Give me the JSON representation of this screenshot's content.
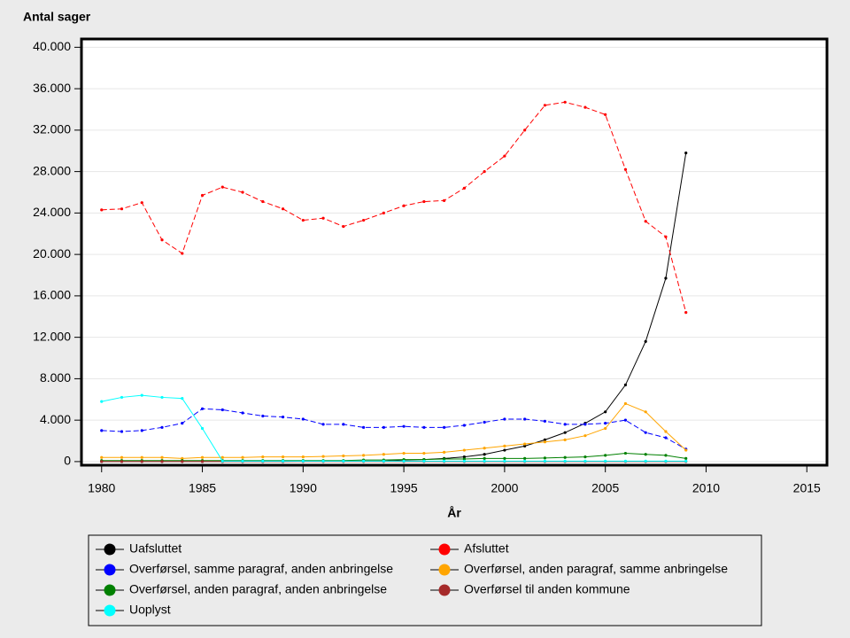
{
  "chart_data": {
    "type": "line",
    "ylabel": "Antal sager",
    "xlabel": "År",
    "x": [
      1980,
      1981,
      1982,
      1983,
      1984,
      1985,
      1986,
      1987,
      1988,
      1989,
      1990,
      1991,
      1992,
      1993,
      1994,
      1995,
      1996,
      1997,
      1998,
      1999,
      2000,
      2001,
      2002,
      2003,
      2004,
      2005,
      2006,
      2007,
      2008,
      2009
    ],
    "xlim": [
      1979,
      2016
    ],
    "xticks": [
      1980,
      1985,
      1990,
      1995,
      2000,
      2005,
      2010,
      2015
    ],
    "ylim": [
      -350,
      40800
    ],
    "yticks": [
      0,
      {
        "value": 4000,
        "label": "4.000"
      },
      {
        "value": 8000,
        "label": "8.000"
      },
      {
        "value": 12000,
        "label": "12.000"
      },
      {
        "value": 16000,
        "label": "16.000"
      },
      {
        "value": 20000,
        "label": "20.000"
      },
      {
        "value": 24000,
        "label": "24.000"
      },
      {
        "value": 28000,
        "label": "28.000"
      },
      {
        "value": 32000,
        "label": "32.000"
      },
      {
        "value": 36000,
        "label": "36.000"
      },
      {
        "value": 40000,
        "label": "40.000"
      }
    ],
    "grid": true,
    "series": [
      {
        "name": "Uafsluttet",
        "color": "#000000",
        "dashed": false,
        "values": [
          0,
          0,
          0,
          0,
          0,
          0,
          0,
          0,
          0,
          0,
          50,
          50,
          50,
          50,
          50,
          150,
          200,
          300,
          450,
          700,
          1100,
          1500,
          2100,
          2800,
          3700,
          4800,
          7400,
          11600,
          17700,
          29800
        ]
      },
      {
        "name": "Afsluttet",
        "color": "#ff0000",
        "dashed": true,
        "values": [
          24300,
          24400,
          25000,
          21400,
          20100,
          25700,
          26500,
          26000,
          25100,
          24400,
          23300,
          23500,
          22700,
          23300,
          24000,
          24700,
          25100,
          25200,
          26400,
          28000,
          29500,
          32000,
          34400,
          34700,
          34200,
          33500,
          28200,
          23200,
          21700,
          14400
        ]
      },
      {
        "name": "Overførsel, samme paragraf, anden anbringelse",
        "color": "#0000ff",
        "dashed": true,
        "values": [
          3000,
          2900,
          3000,
          3300,
          3700,
          5100,
          5000,
          4700,
          4400,
          4300,
          4100,
          3600,
          3600,
          3300,
          3300,
          3400,
          3300,
          3300,
          3500,
          3800,
          4100,
          4100,
          3900,
          3600,
          3600,
          3700,
          4000,
          2800,
          2300,
          1200
        ]
      },
      {
        "name": "Overførsel, anden paragraf, samme anbringelse",
        "color": "#ffa500",
        "dashed": false,
        "values": [
          400,
          400,
          400,
          400,
          300,
          400,
          400,
          400,
          450,
          450,
          450,
          500,
          550,
          600,
          700,
          800,
          800,
          900,
          1100,
          1300,
          1500,
          1700,
          1900,
          2100,
          2500,
          3200,
          5600,
          4800,
          2900,
          1100
        ]
      },
      {
        "name": "Overførsel, anden paragraf, anden anbringelse",
        "color": "#008000",
        "dashed": false,
        "values": [
          100,
          100,
          100,
          100,
          100,
          100,
          100,
          100,
          100,
          100,
          100,
          100,
          100,
          150,
          150,
          200,
          200,
          250,
          250,
          300,
          300,
          300,
          350,
          400,
          450,
          600,
          800,
          700,
          600,
          300
        ]
      },
      {
        "name": "Overførsel til anden kommune",
        "color": "#a52a2a",
        "dashed": false,
        "values": [
          0,
          0,
          0,
          0,
          0,
          0,
          0,
          0,
          0,
          0,
          0,
          0,
          0,
          0,
          0,
          0,
          0,
          0,
          0,
          0,
          0,
          0,
          0,
          0,
          0,
          0,
          0,
          0,
          0,
          0
        ]
      },
      {
        "name": "Uoplyst",
        "color": "#00ffff",
        "dashed": false,
        "values": [
          5800,
          6200,
          6400,
          6200,
          6100,
          3200,
          50,
          50,
          50,
          50,
          50,
          50,
          50,
          50,
          50,
          50,
          50,
          50,
          50,
          50,
          50,
          50,
          50,
          50,
          50,
          50,
          50,
          50,
          50,
          50
        ]
      }
    ]
  }
}
